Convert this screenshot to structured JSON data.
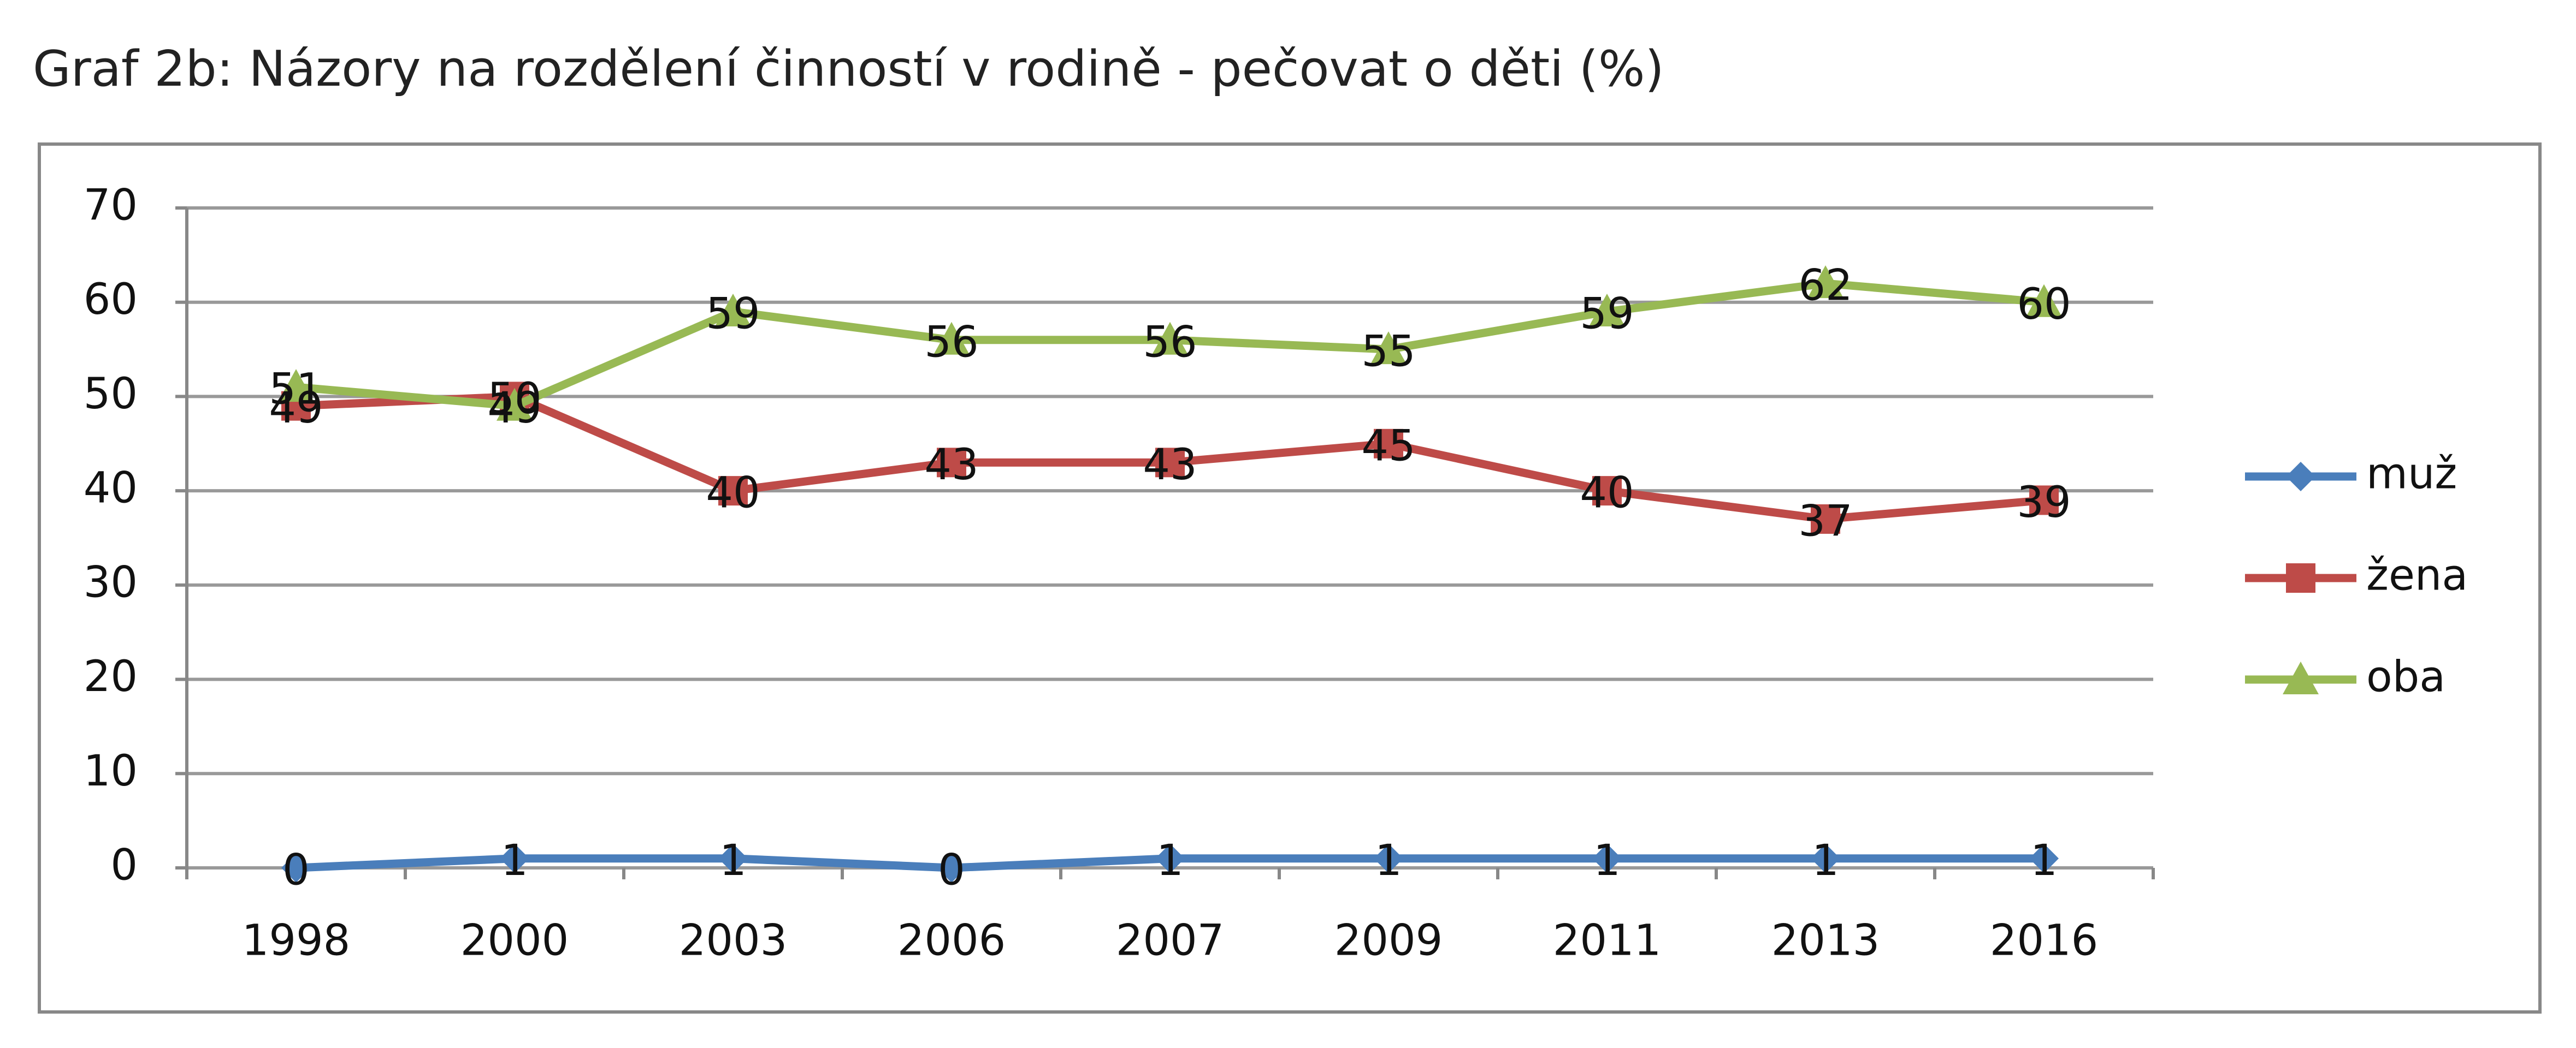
{
  "chart_data": {
    "type": "line",
    "title": "Graf 2b: Názory na rozdělení činností v rodině - pečovat o děti (%)",
    "categories": [
      "1998",
      "2000",
      "2003",
      "2006",
      "2007",
      "2009",
      "2011",
      "2013",
      "2016"
    ],
    "series": [
      {
        "name": "muž",
        "color": "#4a7ebb",
        "marker": "diamond",
        "values": [
          0,
          1,
          1,
          0,
          1,
          1,
          1,
          1,
          1
        ]
      },
      {
        "name": "žena",
        "color": "#be4b48",
        "marker": "square",
        "values": [
          49,
          50,
          40,
          43,
          43,
          45,
          40,
          37,
          39
        ]
      },
      {
        "name": "oba",
        "color": "#98b954",
        "marker": "triangle",
        "values": [
          51,
          49,
          59,
          56,
          56,
          55,
          59,
          62,
          60
        ]
      }
    ],
    "ylim": [
      0,
      70
    ],
    "yticks": [
      0,
      10,
      20,
      30,
      40,
      50,
      60,
      70
    ],
    "grid": true,
    "legend": "right",
    "data_labels": true
  }
}
